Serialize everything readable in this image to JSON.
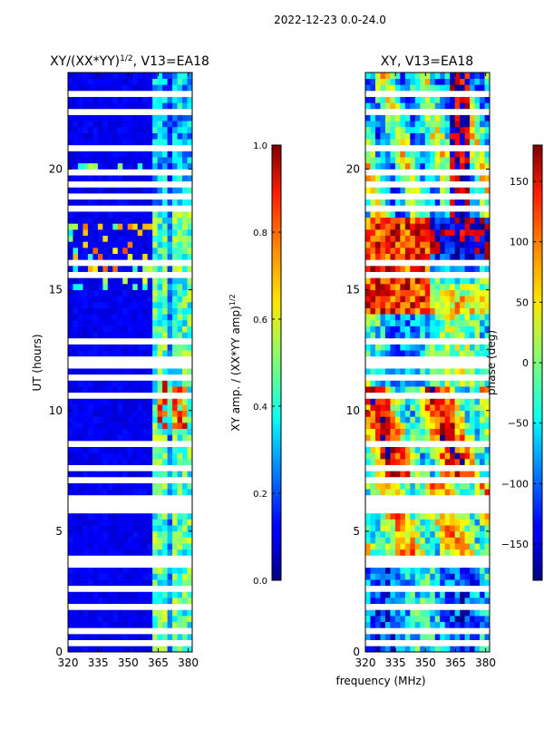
{
  "suptitle": "2022-12-23 0.0-24.0",
  "chart_data": [
    {
      "type": "heatmap",
      "title": "XY/(XX*YY)^{1/2}, V13=EA18",
      "title_main": "XY/(XX*YY)",
      "title_exp": "1/2",
      "title_tail": ", V13=EA18",
      "xlabel": "frequency (MHz)",
      "ylabel": "UT (hours)",
      "xlim": [
        320,
        382
      ],
      "ylim": [
        0,
        24
      ],
      "xticks": [
        320,
        335,
        350,
        365,
        380
      ],
      "yticks": [
        0,
        5,
        10,
        15,
        20
      ],
      "colorbar": {
        "label": "XY amp. / (XX*YY amp)^{1/2}",
        "label_main": "XY amp. / (XX*YY amp)",
        "label_exp": "1/2",
        "range": [
          0.0,
          1.0
        ],
        "ticks": [
          "0.0",
          "0.2",
          "0.4",
          "0.6",
          "0.8",
          "1.0"
        ],
        "colormap": "jet"
      }
    },
    {
      "type": "heatmap",
      "title": "XY, V13=EA18",
      "xlabel": "frequency (MHz)",
      "ylabel": "",
      "xlim": [
        320,
        382
      ],
      "ylim": [
        0,
        24
      ],
      "xticks": [
        320,
        335,
        350,
        365,
        380
      ],
      "yticks": [
        0,
        5,
        10,
        15,
        20
      ],
      "colorbar": {
        "label": "phase (deg)",
        "range": [
          -180,
          180
        ],
        "ticks": [
          "-150",
          "-100",
          "-50",
          "0",
          "50",
          "100",
          "150"
        ],
        "colormap": "jet"
      }
    }
  ]
}
